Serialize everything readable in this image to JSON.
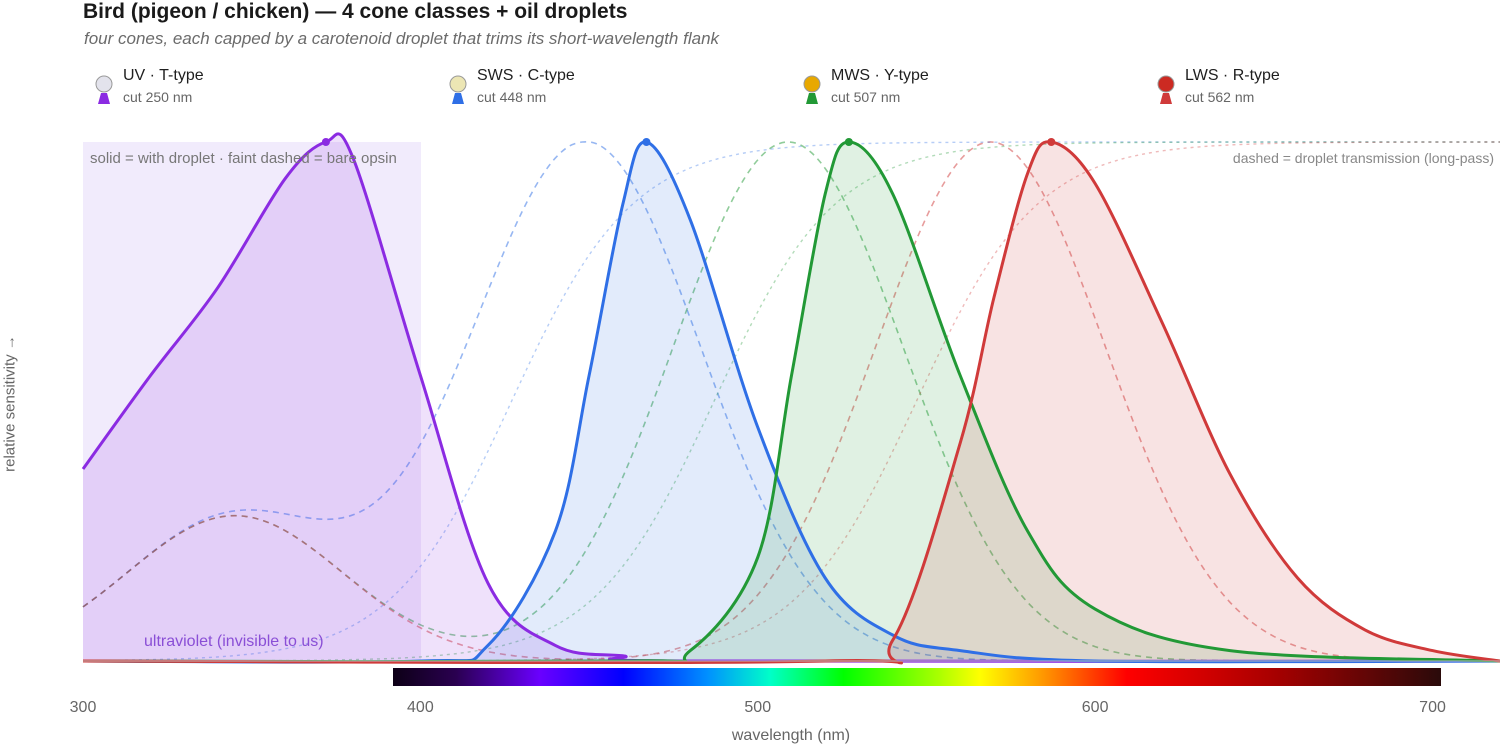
{
  "title": "Bird (pigeon / chicken)  —  4 cone classes + oil droplets",
  "subtitle": "four cones, each capped by a carotenoid droplet that trims its short-wavelength flank",
  "legend": [
    {
      "name": "UV · T-type",
      "cut": "cut 250 nm",
      "droplet_color": "#e3e3ec",
      "cone_color": "#8b2be2"
    },
    {
      "name": "SWS · C-type",
      "cut": "cut 448 nm",
      "droplet_color": "#ece6b4",
      "cone_color": "#2f6fe6"
    },
    {
      "name": "MWS · Y-type",
      "cut": "cut 507 nm",
      "droplet_color": "#e8a800",
      "cone_color": "#229936"
    },
    {
      "name": "LWS · R-type",
      "cut": "cut 562 nm",
      "droplet_color": "#cc2a22",
      "cone_color": "#d03a3a"
    }
  ],
  "annotations": {
    "solid_note": "solid = with droplet · faint dashed = bare opsin",
    "dashed_note": "dashed = droplet transmission (long-pass)",
    "uv_region": "ultraviolet (invisible to us)"
  },
  "chart_data": {
    "type": "line",
    "xlabel": "wavelength (nm)",
    "ylabel": "relative sensitivity →",
    "xlim": [
      300,
      720
    ],
    "ylim": [
      0,
      1
    ],
    "xticks": [
      300,
      400,
      500,
      600,
      700
    ],
    "grid": false,
    "uv_band": [
      300,
      400
    ],
    "visible_spectrum": [
      390,
      700
    ],
    "series": [
      {
        "name": "UV · T-type",
        "color": "#8b2be2",
        "peak_nm": 372,
        "cut_nm": 250,
        "x": [
          300,
          320,
          340,
          360,
          372,
          380,
          400,
          420,
          440,
          460,
          480,
          720
        ],
        "values": [
          0.37,
          0.55,
          0.72,
          0.93,
          1.0,
          0.97,
          0.55,
          0.15,
          0.03,
          0.01,
          0.0,
          0.0
        ]
      },
      {
        "name": "SWS · C-type",
        "color": "#2f6fe6",
        "peak_nm": 467,
        "cut_nm": 448,
        "x": [
          300,
          400,
          420,
          440,
          450,
          460,
          467,
          480,
          500,
          520,
          540,
          560,
          600,
          720
        ],
        "values": [
          0.0,
          0.0,
          0.03,
          0.25,
          0.55,
          0.88,
          1.0,
          0.85,
          0.45,
          0.16,
          0.05,
          0.02,
          0.0,
          0.0
        ]
      },
      {
        "name": "MWS · Y-type",
        "color": "#229936",
        "peak_nm": 527,
        "cut_nm": 507,
        "x": [
          300,
          460,
          480,
          500,
          510,
          520,
          527,
          540,
          560,
          580,
          600,
          640,
          720
        ],
        "values": [
          0.0,
          0.0,
          0.02,
          0.2,
          0.55,
          0.9,
          1.0,
          0.9,
          0.55,
          0.25,
          0.1,
          0.02,
          0.0
        ]
      },
      {
        "name": "LWS · R-type",
        "color": "#d03a3a",
        "peak_nm": 587,
        "cut_nm": 562,
        "x": [
          300,
          520,
          540,
          560,
          570,
          580,
          587,
          600,
          620,
          640,
          660,
          680,
          700,
          720
        ],
        "values": [
          0.0,
          0.0,
          0.04,
          0.42,
          0.7,
          0.94,
          1.0,
          0.92,
          0.65,
          0.36,
          0.16,
          0.06,
          0.02,
          0.0
        ]
      }
    ]
  }
}
